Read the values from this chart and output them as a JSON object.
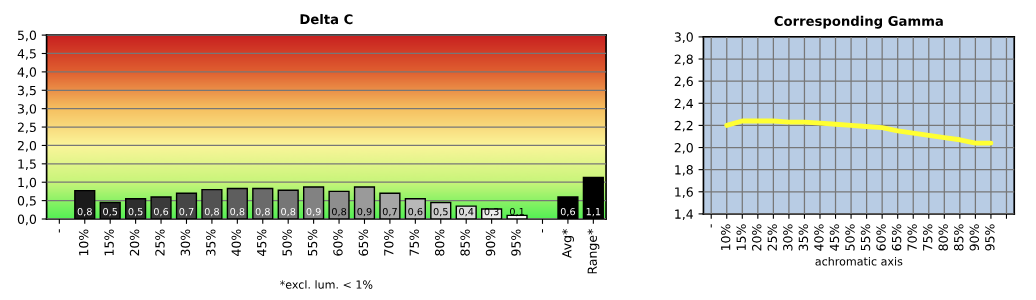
{
  "chart_data": [
    {
      "type": "bar",
      "title": "Delta C",
      "xlabel": "*excl. lum. < 1%",
      "categories": [
        "-",
        "10%",
        "15%",
        "20%",
        "25%",
        "30%",
        "35%",
        "40%",
        "45%",
        "50%",
        "55%",
        "60%",
        "65%",
        "70%",
        "75%",
        "80%",
        "85%",
        "90%",
        "95%",
        "-",
        "Avg*",
        "Range*"
      ],
      "values": [
        null,
        0.77,
        0.45,
        0.55,
        0.6,
        0.7,
        0.8,
        0.83,
        0.83,
        0.78,
        0.87,
        0.75,
        0.87,
        0.7,
        0.55,
        0.45,
        0.35,
        0.27,
        0.1,
        null,
        0.6,
        1.13
      ],
      "value_labels": [
        null,
        "0,8",
        "0,5",
        "0,5",
        "0,6",
        "0,7",
        "0,8",
        "0,8",
        "0,8",
        "0,8",
        "0,9",
        "0,8",
        "0,9",
        "0,7",
        "0,6",
        "0,5",
        "0,4",
        "0,3",
        "0,1",
        null,
        "0,6",
        "1,1"
      ],
      "colors": [
        "#000000",
        "#1a1a1a",
        "#222222",
        "#2e2e2e",
        "#3a3a3a",
        "#464646",
        "#525252",
        "#5e5e5e",
        "#6a6a6a",
        "#767676",
        "#828282",
        "#8e8e8e",
        "#9a9a9a",
        "#a6a6a6",
        "#b8b8b8",
        "#cacaca",
        "#dcdcdc",
        "#ececec",
        "#f8f8f8",
        "#000000",
        "#000000",
        "#000000"
      ],
      "ylim": [
        0,
        5
      ],
      "yticks": [
        {
          "value": 0,
          "label": "0,0"
        },
        {
          "value": 0.5,
          "label": "0,5"
        },
        {
          "value": 1,
          "label": "1,0"
        },
        {
          "value": 1.5,
          "label": "1,5"
        },
        {
          "value": 2,
          "label": "2,0"
        },
        {
          "value": 2.5,
          "label": "2,5"
        },
        {
          "value": 3,
          "label": "3,0"
        },
        {
          "value": 3.5,
          "label": "3,5"
        },
        {
          "value": 4,
          "label": "4,0"
        },
        {
          "value": 4.5,
          "label": "4,5"
        },
        {
          "value": 5,
          "label": "5,0"
        }
      ],
      "grid": "y"
    },
    {
      "type": "line",
      "title": "Corresponding Gamma",
      "xlabel": "achromatic axis",
      "categories": [
        "-",
        "10%",
        "15%",
        "20%",
        "25%",
        "30%",
        "35%",
        "40%",
        "45%",
        "50%",
        "55%",
        "60%",
        "65%",
        "70%",
        "75%",
        "80%",
        "85%",
        "90%",
        "95%",
        null
      ],
      "series": [
        {
          "color": "#ffff33",
          "values": [
            null,
            2.2,
            2.24,
            2.24,
            2.24,
            2.23,
            2.23,
            2.22,
            2.21,
            2.2,
            2.19,
            2.18,
            2.15,
            2.13,
            2.11,
            2.09,
            2.07,
            2.04,
            2.04,
            null
          ]
        }
      ],
      "ylim": [
        1.4,
        3.0
      ],
      "yticks": [
        {
          "value": 1.4,
          "label": "1,4"
        },
        {
          "value": 1.6,
          "label": "1,6"
        },
        {
          "value": 1.8,
          "label": "1,8"
        },
        {
          "value": 2.0,
          "label": "2,0"
        },
        {
          "value": 2.2,
          "label": "2,2"
        },
        {
          "value": 2.4,
          "label": "2,4"
        },
        {
          "value": 2.6,
          "label": "2,6"
        },
        {
          "value": 2.8,
          "label": "2,8"
        },
        {
          "value": 3.0,
          "label": "3,0"
        }
      ],
      "grid": true,
      "marker": "none",
      "line_style": "solid"
    }
  ]
}
